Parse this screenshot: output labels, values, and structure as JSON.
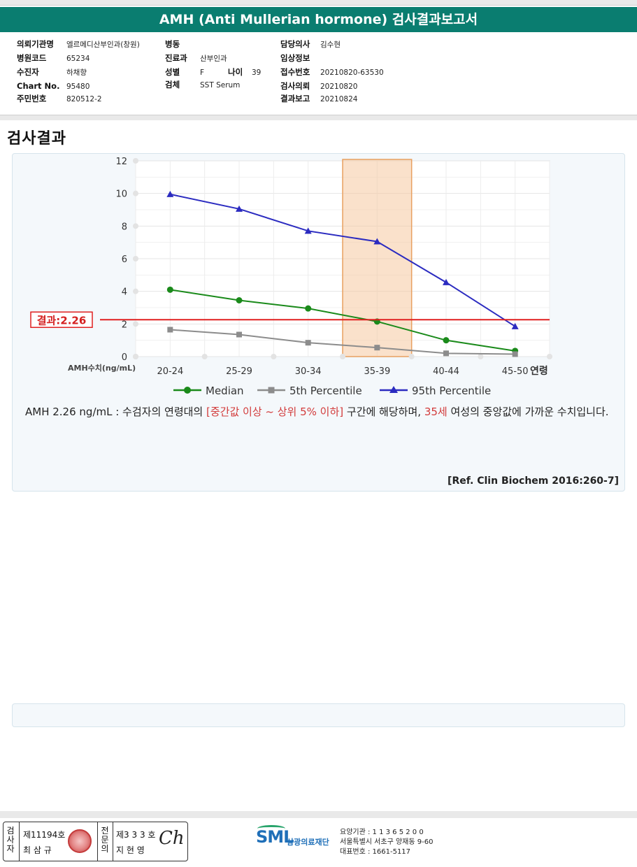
{
  "report": {
    "title": "AMH (Anti Mullerian hormone) 검사결과보고서"
  },
  "patient": {
    "col1": [
      {
        "label": "의뢰기관명",
        "value": "엘르메디산부인과(창원)"
      },
      {
        "label": "병원코드",
        "value": "65234"
      },
      {
        "label": "수진자",
        "value": "하채향"
      },
      {
        "label": "Chart No.",
        "value": "95480"
      },
      {
        "label": "주민번호",
        "value": "820512-2"
      }
    ],
    "col2": [
      {
        "label": "병동",
        "value": ""
      },
      {
        "label": "진료과",
        "value": "산부인과"
      },
      {
        "label": "성별",
        "value": "F"
      },
      {
        "label": "검체",
        "value": "SST Serum"
      }
    ],
    "age_label": "나이",
    "age_value": "39",
    "col3": [
      {
        "label": "담당의사",
        "value": "김수현"
      },
      {
        "label": "임상정보",
        "value": ""
      },
      {
        "label": "접수번호",
        "value": "20210820-63530"
      },
      {
        "label": "검사의뢰",
        "value": "20210820"
      },
      {
        "label": "결과보고",
        "value": "20210824"
      }
    ]
  },
  "section_title": "검사결과",
  "chart_data": {
    "type": "line",
    "categories": [
      "20-24",
      "25-29",
      "30-34",
      "35-39",
      "40-44",
      "45-50"
    ],
    "xlabel": "연령",
    "ylabel": "AMH수치(ng/mL)",
    "ylim": [
      0,
      12
    ],
    "yticks": [
      "0",
      "2",
      "4",
      "6",
      "8",
      "10",
      "12"
    ],
    "grid": true,
    "legend_position": "bottom",
    "series": [
      {
        "name": "Median",
        "color": "#1a8a1a",
        "marker": "circle",
        "values": [
          4.1,
          3.45,
          2.95,
          2.15,
          1.0,
          0.35
        ]
      },
      {
        "name": "5th Percentile",
        "color": "#8c8c8c",
        "marker": "square",
        "values": [
          1.65,
          1.35,
          0.85,
          0.55,
          0.2,
          0.15
        ]
      },
      {
        "name": "95th Percentile",
        "color": "#2b2bc0",
        "marker": "triangle",
        "values": [
          9.95,
          9.05,
          7.7,
          7.05,
          4.55,
          1.85
        ]
      }
    ],
    "highlight_band": {
      "category": "35-39",
      "color": "#f5c9a0"
    },
    "result_line": {
      "value": 2.26,
      "label": "결과:2.26",
      "color": "#e02020"
    }
  },
  "interpretation": {
    "part1": "AMH  2.26 ng/mL : 수검자의 연령대의 ",
    "highlight1": "[중간값 이상 ~ 상위 5% 이하]",
    "part2": " 구간에 해당하며, ",
    "highlight2": "35세",
    "part3": " 여성의 중앙값에 가까운 수치입니다."
  },
  "reference": "[Ref. Clin Biochem 2016:260-7]",
  "footer": {
    "inspector_label": "검사자",
    "inspector_no": "제11194호",
    "inspector_name": "최 삼 규",
    "doctor_label": "전문의",
    "doctor_no": "제3 3 3 호",
    "doctor_name": "지 현 영",
    "signature": "Ch",
    "logo": "SML",
    "org_name": "삼광의료재단",
    "org_line1": "요양기관 : 1 1 3 6 5 2 0 0",
    "org_line2": "서울특별시 서초구 양재동 9-60",
    "org_line3": "대표번호 : 1661-5117"
  }
}
